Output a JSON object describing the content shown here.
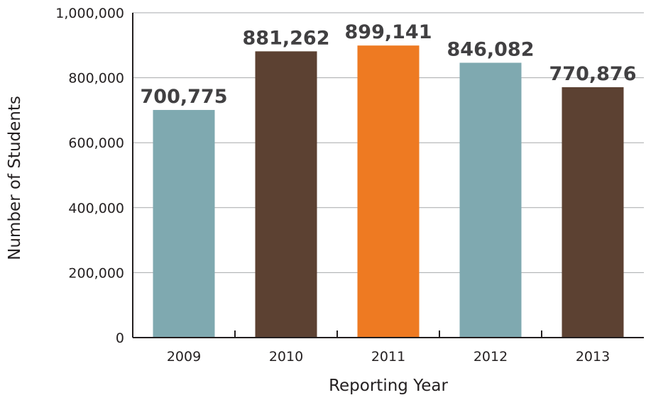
{
  "chart_data": {
    "type": "bar",
    "categories": [
      "2009",
      "2010",
      "2011",
      "2012",
      "2013"
    ],
    "values": [
      700775,
      881262,
      899141,
      846082,
      770876
    ],
    "data_labels": [
      "700,775",
      "881,262",
      "899,141",
      "846,082",
      "770,876"
    ],
    "bar_colors": [
      "#7fa9b0",
      "#5c4132",
      "#ee7a22",
      "#7fa9b0",
      "#5c4132"
    ],
    "xlabel": "Reporting Year",
    "ylabel": "Number of Students",
    "ylim": [
      0,
      1000000
    ],
    "yticks": [
      0,
      200000,
      400000,
      600000,
      800000,
      1000000
    ],
    "ytick_labels": [
      "0",
      "200,000",
      "400,000",
      "600,000",
      "800,000",
      "1,000,000"
    ],
    "grid": true,
    "legend": "none"
  }
}
